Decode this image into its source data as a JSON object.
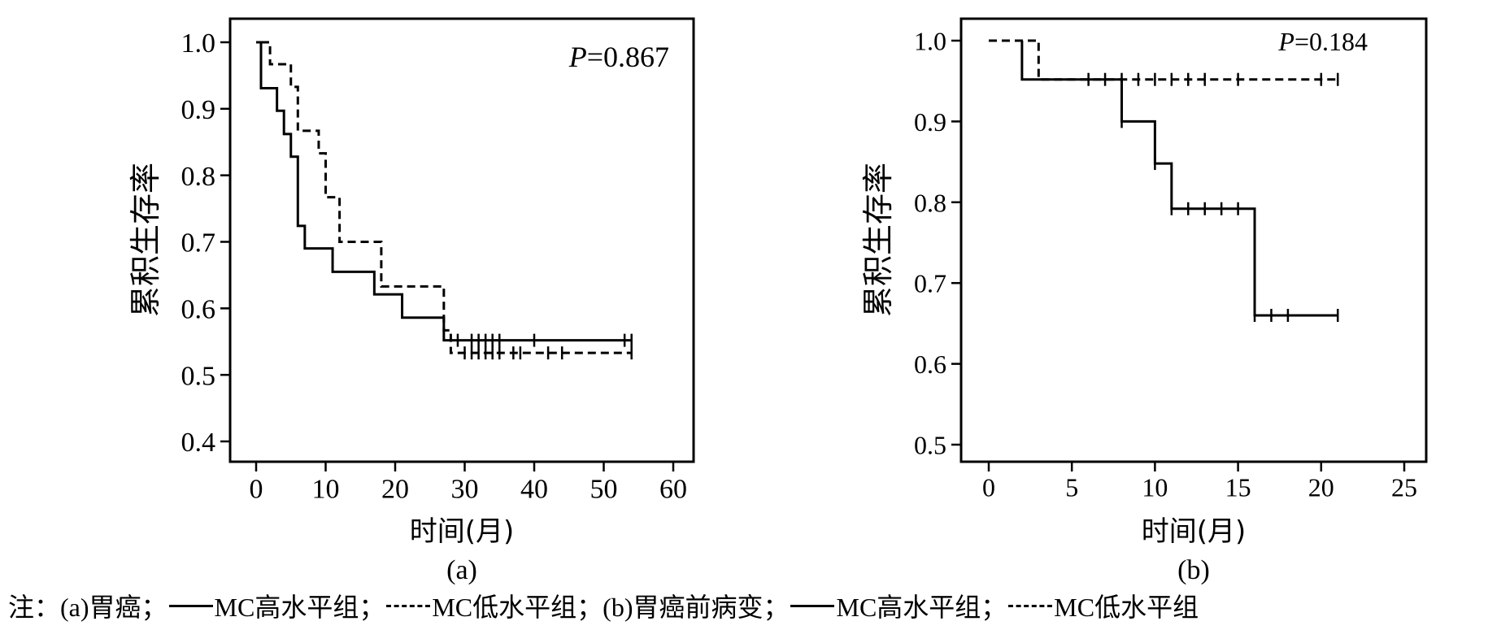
{
  "chart_data": [
    {
      "type": "line",
      "panel_label": "(a)",
      "annotation": "P=0.867",
      "annotation_italic": "P",
      "annotation_rest": "=0.867",
      "xlabel": "时间(月)",
      "ylabel": "累积生存率",
      "xlim": [
        0,
        60
      ],
      "ylim": [
        0.4,
        1.0
      ],
      "xticks": [
        "0",
        "10",
        "20",
        "30",
        "40",
        "50",
        "60"
      ],
      "yticks": [
        "0.4",
        "0.5",
        "0.6",
        "0.7",
        "0.8",
        "0.9",
        "1.0"
      ],
      "grid": false,
      "series": [
        {
          "style": "solid",
          "steps": [
            [
              0,
              1.0
            ],
            [
              0.7,
              0.931
            ],
            [
              3,
              0.897
            ],
            [
              4,
              0.862
            ],
            [
              5,
              0.828
            ],
            [
              6,
              0.724
            ],
            [
              7,
              0.69
            ],
            [
              11,
              0.655
            ],
            [
              17,
              0.621
            ],
            [
              21,
              0.586
            ],
            [
              27,
              0.552
            ],
            [
              54,
              0.552
            ]
          ],
          "censored": [
            29,
            31,
            32,
            33,
            34,
            35,
            40,
            53,
            54
          ]
        },
        {
          "style": "dashed",
          "steps": [
            [
              0.7,
              1.0
            ],
            [
              2,
              0.967
            ],
            [
              5,
              0.933
            ],
            [
              6,
              0.867
            ],
            [
              9,
              0.833
            ],
            [
              10,
              0.767
            ],
            [
              12,
              0.7
            ],
            [
              18,
              0.633
            ],
            [
              27,
              0.567
            ],
            [
              28,
              0.533
            ],
            [
              54,
              0.533
            ]
          ],
          "censored": [
            30,
            31,
            32,
            33,
            34,
            35,
            37,
            38,
            42,
            44,
            54
          ]
        }
      ]
    },
    {
      "type": "line",
      "panel_label": "(b)",
      "annotation": "P=0.184",
      "annotation_italic": "P",
      "annotation_rest": "=0.184",
      "xlabel": "时间(月)",
      "ylabel": "累积生存率",
      "xlim": [
        0,
        25
      ],
      "ylim": [
        0.5,
        1.0
      ],
      "xticks": [
        "0",
        "5",
        "10",
        "15",
        "20",
        "25"
      ],
      "yticks": [
        "0.5",
        "0.6",
        "0.7",
        "0.8",
        "0.9",
        "1.0"
      ],
      "grid": false,
      "series": [
        {
          "style": "solid",
          "steps": [
            [
              2,
              1.0
            ],
            [
              2,
              0.952
            ],
            [
              8,
              0.9
            ],
            [
              10,
              0.848
            ],
            [
              11,
              0.792
            ],
            [
              16,
              0.66
            ],
            [
              21,
              0.66
            ]
          ],
          "censored": [
            8,
            10,
            11,
            12,
            13,
            14,
            15,
            16,
            17,
            18,
            21
          ]
        },
        {
          "style": "dashed",
          "steps": [
            [
              0,
              1.0
            ],
            [
              3,
              0.952
            ],
            [
              21,
              0.952
            ]
          ],
          "censored": [
            6,
            7,
            8,
            9,
            10,
            11,
            12,
            13,
            15,
            20,
            21
          ]
        }
      ]
    }
  ],
  "note": {
    "prefix": "注：(a)胃癌；",
    "a_high": "MC高水平组；",
    "a_low": "MC低水平组；",
    "b_prefix": "(b)胃癌前病变；",
    "b_high": "MC高水平组；",
    "b_low": "MC低水平组"
  }
}
